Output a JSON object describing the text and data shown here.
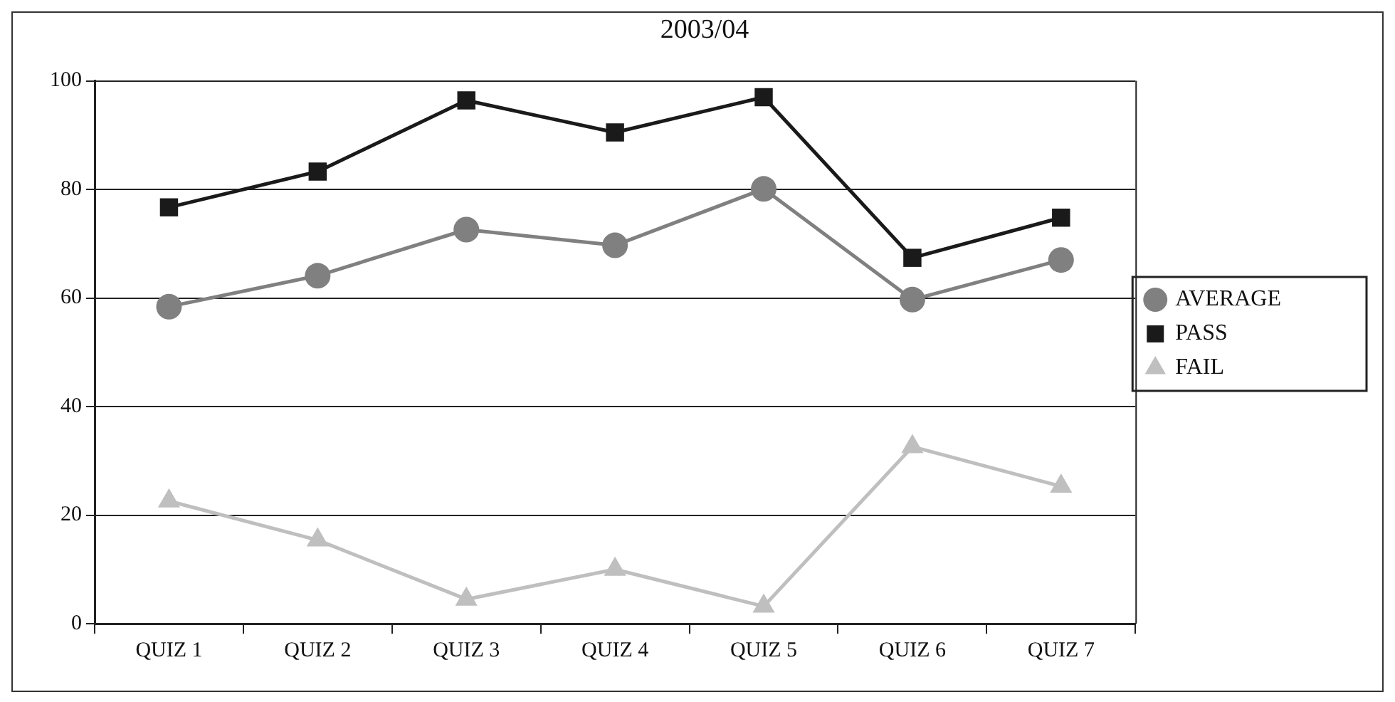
{
  "chart_data": {
    "type": "line",
    "title": "2003/04",
    "categories": [
      "QUIZ 1",
      "QUIZ 2",
      "QUIZ 3",
      "QUIZ 4",
      "QUIZ 5",
      "QUIZ 6",
      "QUIZ 7"
    ],
    "series": [
      {
        "name": "AVERAGE",
        "color": "#808080",
        "marker": "circle",
        "values": [
          58.4,
          64.1,
          72.6,
          69.7,
          80.1,
          59.7,
          67
        ]
      },
      {
        "name": "PASS",
        "color": "#1a1a1a",
        "marker": "square",
        "values": [
          76.7,
          83.3,
          96.4,
          90.5,
          97,
          67.4,
          74.8
        ]
      },
      {
        "name": "FAIL",
        "color": "#bfbfbf",
        "marker": "triangle",
        "values": [
          22.6,
          15.4,
          4.5,
          10,
          3.2,
          32.6,
          25.3
        ]
      }
    ],
    "ylim": [
      0,
      100
    ],
    "yticks": [
      0,
      20,
      40,
      60,
      80,
      100
    ],
    "grid": "y",
    "legend": "right"
  }
}
